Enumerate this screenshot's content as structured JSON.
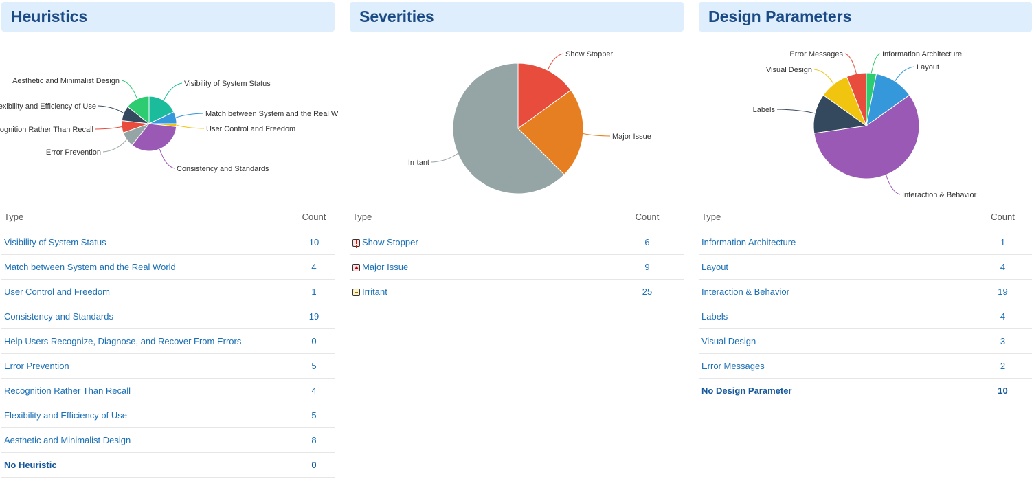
{
  "panels": [
    {
      "title": "Heuristics",
      "col_type": "Type",
      "col_count": "Count",
      "rows": [
        {
          "label": "Visibility of System Status",
          "count": "10"
        },
        {
          "label": "Match between System and the Real World",
          "count": "4"
        },
        {
          "label": "User Control and Freedom",
          "count": "1"
        },
        {
          "label": "Consistency and Standards",
          "count": "19"
        },
        {
          "label": "Help Users Recognize, Diagnose, and Recover From Errors",
          "count": "0"
        },
        {
          "label": "Error Prevention",
          "count": "5"
        },
        {
          "label": "Recognition Rather Than Recall",
          "count": "4"
        },
        {
          "label": "Flexibility and Efficiency of Use",
          "count": "5"
        },
        {
          "label": "Aesthetic and Minimalist Design",
          "count": "8"
        },
        {
          "label": "No Heuristic",
          "count": "0",
          "bold": true
        }
      ]
    },
    {
      "title": "Severities",
      "col_type": "Type",
      "col_count": "Count",
      "rows": [
        {
          "label": "Show Stopper",
          "count": "6",
          "icon": "show-stopper-icon"
        },
        {
          "label": "Major Issue",
          "count": "9",
          "icon": "major-issue-icon"
        },
        {
          "label": "Irritant",
          "count": "25",
          "icon": "irritant-icon"
        }
      ]
    },
    {
      "title": "Design Parameters",
      "col_type": "Type",
      "col_count": "Count",
      "rows": [
        {
          "label": "Information Architecture",
          "count": "1"
        },
        {
          "label": "Layout",
          "count": "4"
        },
        {
          "label": "Interaction & Behavior",
          "count": "19"
        },
        {
          "label": "Labels",
          "count": "4"
        },
        {
          "label": "Visual Design",
          "count": "3"
        },
        {
          "label": "Error Messages",
          "count": "2"
        },
        {
          "label": "No Design Parameter",
          "count": "10",
          "bold": true
        }
      ]
    }
  ],
  "chart_data": [
    {
      "type": "pie",
      "title": "",
      "slices": [
        {
          "label": "Visibility of System Status",
          "value": 10,
          "color": "#1abc9c"
        },
        {
          "label": "Match between System and the Real W",
          "value": 4,
          "color": "#3498db"
        },
        {
          "label": "User Control and Freedom",
          "value": 1,
          "color": "#f1c40f"
        },
        {
          "label": "Consistency and Standards",
          "value": 19,
          "color": "#9b59b6"
        },
        {
          "label": "Error Prevention",
          "value": 5,
          "color": "#95a5a6"
        },
        {
          "label": "Recognition Rather Than Recall",
          "value": 4,
          "color": "#e74c3c"
        },
        {
          "label": "Flexibility and Efficiency of Use",
          "value": 5,
          "color": "#34495e"
        },
        {
          "label": "Aesthetic and Minimalist Design",
          "value": 8,
          "color": "#2ecc71"
        }
      ]
    },
    {
      "type": "pie",
      "title": "",
      "slices": [
        {
          "label": "Show Stopper",
          "value": 6,
          "color": "#e74c3c"
        },
        {
          "label": "Major Issue",
          "value": 9,
          "color": "#e67e22"
        },
        {
          "label": "Irritant",
          "value": 25,
          "color": "#95a5a6"
        }
      ]
    },
    {
      "type": "pie",
      "title": "",
      "slices": [
        {
          "label": "Information Architecture",
          "value": 1,
          "color": "#2ecc71"
        },
        {
          "label": "Layout",
          "value": 4,
          "color": "#3498db"
        },
        {
          "label": "Interaction & Behavior",
          "value": 19,
          "color": "#9b59b6"
        },
        {
          "label": "Labels",
          "value": 4,
          "color": "#34495e"
        },
        {
          "label": "Visual Design",
          "value": 3,
          "color": "#f1c40f"
        },
        {
          "label": "Error Messages",
          "value": 2,
          "color": "#e74c3c"
        }
      ]
    }
  ]
}
